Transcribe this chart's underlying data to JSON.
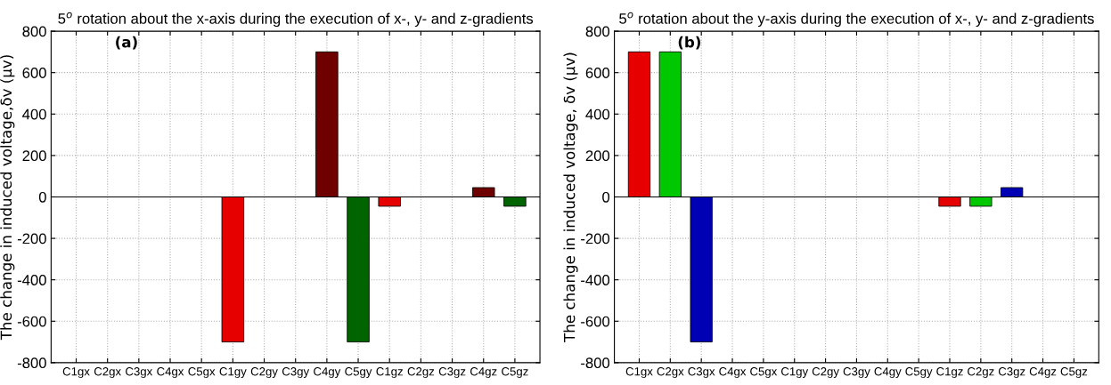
{
  "chart_data": [
    {
      "type": "bar",
      "title": "5$^{o}$ rotation about the x-axis during the execution of x-, y- and z-gradients",
      "ylabel": "The change in induced voltage,δv (µv)",
      "annotations": [
        "(a)"
      ],
      "categories": [
        "C1gx",
        "C2gx",
        "C3gx",
        "C4gx",
        "C5gx",
        "C1gy",
        "C2gy",
        "C3gy",
        "C4gy",
        "C5gy",
        "C1gz",
        "C2gz",
        "C3gz",
        "C4gz",
        "C5gz"
      ],
      "values": [
        0,
        0,
        0,
        0,
        0,
        -700,
        0,
        0,
        700,
        -700,
        -45,
        0,
        0,
        45,
        -45
      ],
      "colors": [
        null,
        null,
        null,
        null,
        null,
        "#e60000",
        null,
        null,
        "#6e0000",
        "#006400",
        "#e60000",
        null,
        null,
        "#6e0000",
        "#006400"
      ],
      "ylim": [
        -800,
        800
      ],
      "yticks": [
        -800,
        -600,
        -400,
        -200,
        0,
        200,
        400,
        600,
        800
      ],
      "grid": true,
      "ref_lines": [
        {
          "axis": "y",
          "value": 0,
          "color": "#000000"
        }
      ]
    },
    {
      "type": "bar",
      "title": "5$^{o}$ rotation about the y-axis during the execution of x-, y- and z-gradients",
      "ylabel": "The change in induced voltage, δv (µv)",
      "annotations": [
        "(b)"
      ],
      "categories": [
        "C1gx",
        "C2gx",
        "C3gx",
        "C4gx",
        "C5gx",
        "C1gy",
        "C2gy",
        "C3gy",
        "C4gy",
        "C5gy",
        "C1gz",
        "C2gz",
        "C3gz",
        "C4gz",
        "C5gz"
      ],
      "values": [
        700,
        700,
        -700,
        0,
        0,
        0,
        0,
        0,
        0,
        0,
        -45,
        -45,
        45,
        0,
        0
      ],
      "colors": [
        "#e60000",
        "#00c800",
        "#0000b4",
        null,
        null,
        null,
        null,
        null,
        null,
        null,
        "#e60000",
        "#00c800",
        "#0000b4",
        null,
        null
      ],
      "ylim": [
        -800,
        800
      ],
      "yticks": [
        -800,
        -600,
        -400,
        -200,
        0,
        200,
        400,
        600,
        800
      ],
      "grid": true,
      "ref_lines": [
        {
          "axis": "y",
          "value": 0,
          "color": "#000000"
        }
      ]
    }
  ]
}
